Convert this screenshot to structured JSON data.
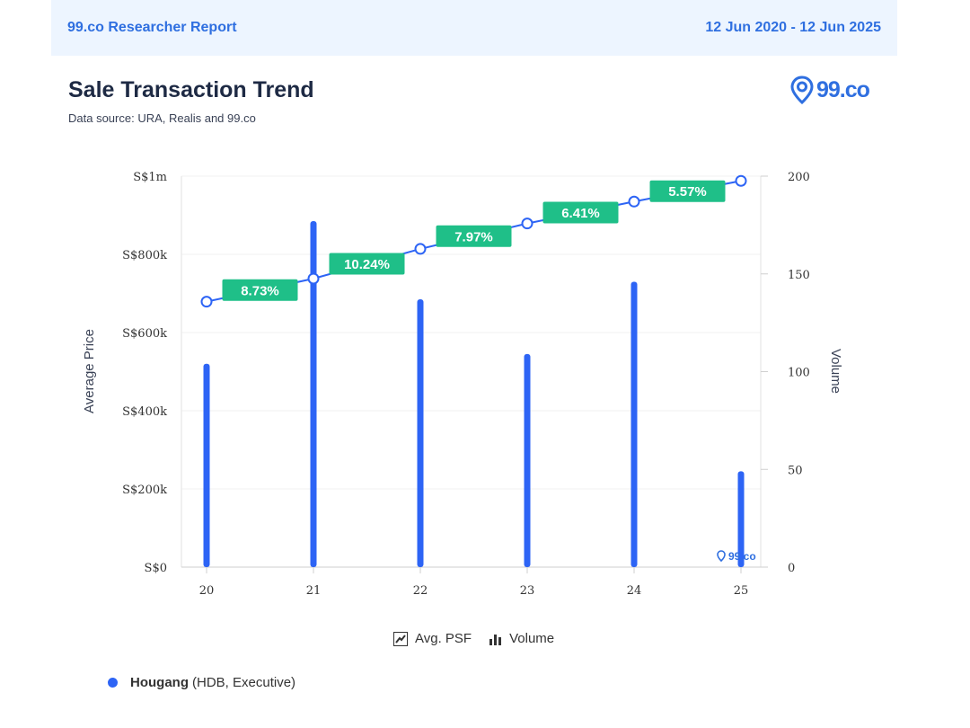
{
  "header": {
    "report_title": "99.co Researcher Report",
    "date_range": "12 Jun 2020 - 12 Jun 2025"
  },
  "chart_title": "Sale Transaction Trend",
  "data_source": "Data source: URA, Realis and 99.co",
  "brand": {
    "logo_text": "99.co",
    "watermark_text": "99.co",
    "color": "#2f6fe0"
  },
  "legend": {
    "line_label": "Avg. PSF",
    "bar_label": "Volume"
  },
  "series_key": {
    "name": "Hougang",
    "detail": "(HDB, Executive)",
    "color": "#2d64f5"
  },
  "chart_data": {
    "type": "bar+line",
    "categories": [
      "20",
      "21",
      "22",
      "23",
      "24",
      "25"
    ],
    "ylabel": "Average Price",
    "y2label": "Volume",
    "ylim": [
      0,
      1000000
    ],
    "y2lim": [
      0,
      200
    ],
    "y_ticks": [
      0,
      200000,
      400000,
      600000,
      800000,
      1000000
    ],
    "y_tick_labels": [
      "S$0",
      "S$200k",
      "S$400k",
      "S$600k",
      "S$800k",
      "S$1m"
    ],
    "y2_ticks": [
      0,
      50,
      100,
      150,
      200
    ],
    "y2_tick_labels": [
      "0",
      "50",
      "100",
      "150",
      "200"
    ],
    "grid": true,
    "legend_position": "bottom-center",
    "series": [
      {
        "name": "Avg. PSF",
        "type": "line",
        "axis": "left",
        "color": "#2d64f5",
        "values": [
          679000,
          738000,
          814000,
          879000,
          935000,
          988000
        ]
      },
      {
        "name": "Volume",
        "type": "bar",
        "axis": "right",
        "color": "#2d64f5",
        "values": [
          104,
          177,
          137,
          109,
          146,
          49
        ]
      }
    ],
    "change_labels": [
      "8.73%",
      "10.24%",
      "7.97%",
      "6.41%",
      "5.57%"
    ],
    "change_label_color": "#1fbf88"
  }
}
